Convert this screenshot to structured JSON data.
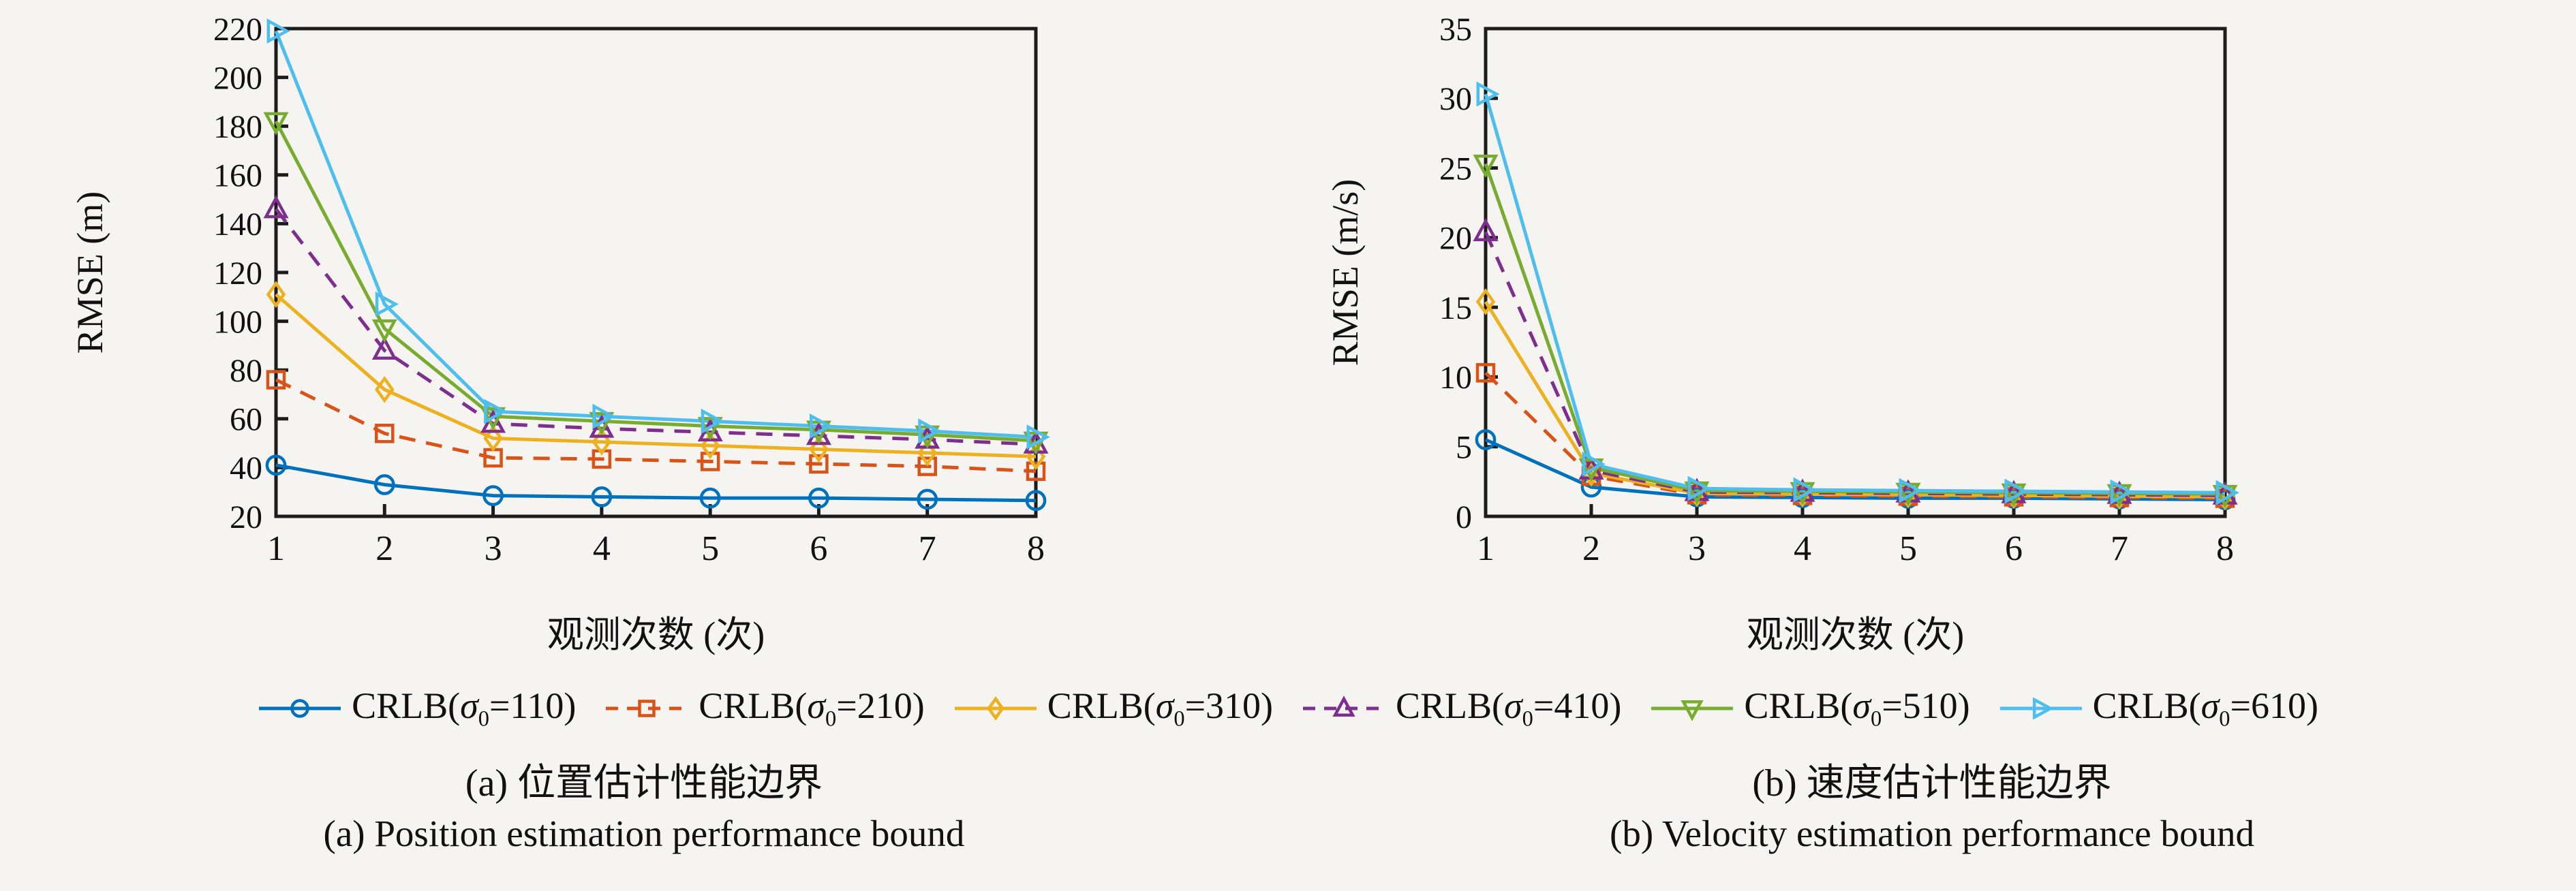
{
  "figure": {
    "background": "#f5f4f1",
    "axis_color": "#1c1c1c",
    "text_color": "#111111"
  },
  "chart_data": [
    {
      "type": "line",
      "title": "",
      "xlabel": "观测次数 (次)",
      "ylabel": "RMSE (m)",
      "x": [
        1,
        2,
        3,
        4,
        5,
        6,
        7,
        8
      ],
      "xlim": [
        1,
        8
      ],
      "ylim": [
        20,
        220
      ],
      "ytick_step": 20,
      "grid": false,
      "legend_position": "shared-bottom",
      "series": [
        {
          "name": "CRLB(σ0=110)",
          "label_prefix": "CRLB(",
          "label_sigma": "σ",
          "label_sub": "0",
          "label_suffix": "=110)",
          "color": "#0072BD",
          "marker": "circle",
          "line_style": "solid",
          "values": [
            41,
            33,
            28.5,
            28,
            27.5,
            27.5,
            27,
            26.5
          ]
        },
        {
          "name": "CRLB(σ0=210)",
          "label_prefix": "CRLB(",
          "label_sigma": "σ",
          "label_sub": "0",
          "label_suffix": "=210)",
          "color": "#D95319",
          "marker": "square",
          "line_style": "dashed",
          "values": [
            76,
            54,
            44,
            43.5,
            42.5,
            41.5,
            40.5,
            38.5
          ]
        },
        {
          "name": "CRLB(σ0=310)",
          "label_prefix": "CRLB(",
          "label_sigma": "σ",
          "label_sub": "0",
          "label_suffix": "=310)",
          "color": "#EDB120",
          "marker": "diamond",
          "line_style": "solid",
          "values": [
            111,
            72,
            52,
            50.5,
            49,
            47.5,
            46,
            44.5
          ]
        },
        {
          "name": "CRLB(σ0=410)",
          "label_prefix": "CRLB(",
          "label_sigma": "σ",
          "label_sub": "0",
          "label_suffix": "=410)",
          "color": "#7E2F8E",
          "marker": "triangle-up",
          "line_style": "dashed",
          "values": [
            146,
            88,
            58,
            56,
            54.5,
            53,
            51.5,
            49.5
          ]
        },
        {
          "name": "CRLB(σ0=510)",
          "label_prefix": "CRLB(",
          "label_sigma": "σ",
          "label_sub": "0",
          "label_suffix": "=510)",
          "color": "#77AC30",
          "marker": "triangle-down",
          "line_style": "solid",
          "values": [
            182,
            97,
            61,
            59,
            57,
            55.5,
            53.5,
            51
          ]
        },
        {
          "name": "CRLB(σ0=610)",
          "label_prefix": "CRLB(",
          "label_sigma": "σ",
          "label_sub": "0",
          "label_suffix": "=610)",
          "color": "#4DBEEE",
          "marker": "triangle-right",
          "line_style": "solid",
          "values": [
            219,
            107,
            63,
            61,
            59,
            57,
            55,
            52.5
          ]
        }
      ],
      "caption_zh": "(a) 位置估计性能边界",
      "caption_en": "(a) Position estimation performance bound"
    },
    {
      "type": "line",
      "title": "",
      "xlabel": "观测次数 (次)",
      "ylabel": "RMSE (m/s)",
      "x": [
        1,
        2,
        3,
        4,
        5,
        6,
        7,
        8
      ],
      "xlim": [
        1,
        8
      ],
      "ylim": [
        0,
        35
      ],
      "ytick_step": 5,
      "grid": false,
      "legend_position": "shared-bottom",
      "series": [
        {
          "name": "CRLB(σ0=110)",
          "color": "#0072BD",
          "marker": "circle",
          "line_style": "solid",
          "values": [
            5.5,
            2.1,
            1.4,
            1.35,
            1.3,
            1.3,
            1.25,
            1.2
          ]
        },
        {
          "name": "CRLB(σ0=210)",
          "color": "#D95319",
          "marker": "square",
          "line_style": "dashed",
          "values": [
            10.3,
            2.9,
            1.55,
            1.5,
            1.45,
            1.4,
            1.35,
            1.3
          ]
        },
        {
          "name": "CRLB(σ0=310)",
          "color": "#EDB120",
          "marker": "diamond",
          "line_style": "solid",
          "values": [
            15.4,
            3.1,
            1.65,
            1.6,
            1.55,
            1.5,
            1.45,
            1.4
          ]
        },
        {
          "name": "CRLB(σ0=410)",
          "color": "#7E2F8E",
          "marker": "triangle-up",
          "line_style": "dashed",
          "values": [
            20.4,
            3.3,
            1.75,
            1.7,
            1.65,
            1.6,
            1.55,
            1.5
          ]
        },
        {
          "name": "CRLB(σ0=510)",
          "color": "#77AC30",
          "marker": "triangle-down",
          "line_style": "solid",
          "values": [
            25.3,
            3.5,
            1.85,
            1.8,
            1.75,
            1.7,
            1.65,
            1.6
          ]
        },
        {
          "name": "CRLB(σ0=610)",
          "color": "#4DBEEE",
          "marker": "triangle-right",
          "line_style": "solid",
          "values": [
            30.3,
            3.75,
            2.0,
            1.9,
            1.85,
            1.8,
            1.75,
            1.7
          ]
        }
      ],
      "caption_zh": "(b) 速度估计性能边界",
      "caption_en": "(b) Velocity estimation performance bound"
    }
  ]
}
